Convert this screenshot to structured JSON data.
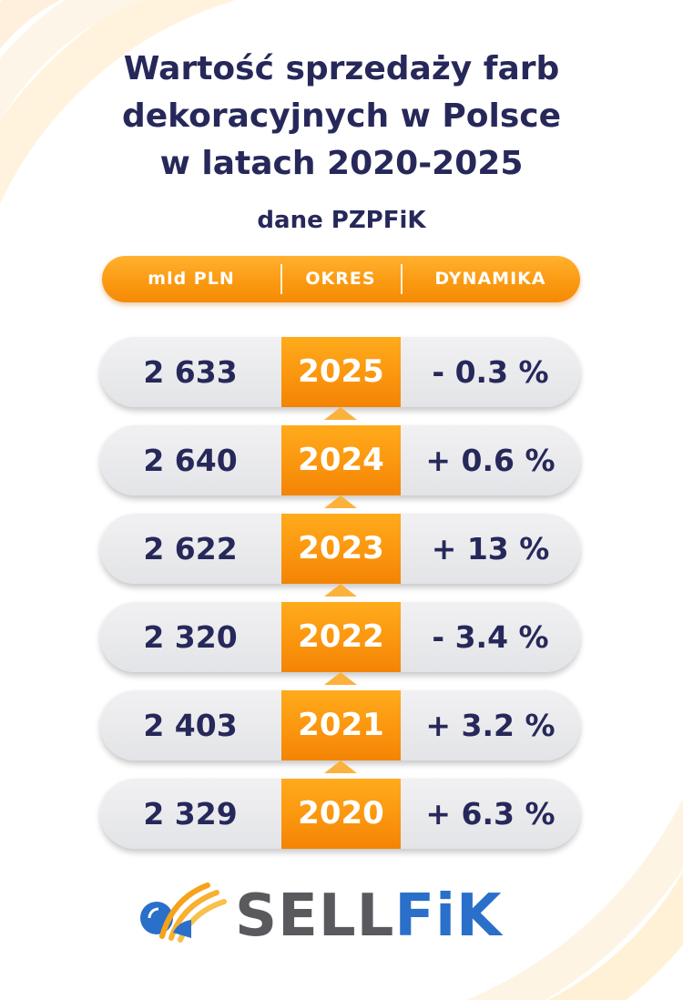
{
  "title_lines": [
    "Wartość sprzedaży farb",
    "dekoracyjnych w Polsce",
    "w latach 2020-2025"
  ],
  "subtitle": "dane PZPFiK",
  "colors": {
    "navy": "#27285a",
    "orange": "#fb960e",
    "row_bg": "#e6e7ea",
    "logo_grey": "#5a5a5e",
    "logo_blue": "#2a6fc9"
  },
  "header": {
    "value_label": "mld PLN",
    "period_label": "OKRES",
    "dynamics_label": "DYNAMIKA"
  },
  "rows": [
    {
      "value": "2 633",
      "year": "2025",
      "dynamics": "- 0.3 %"
    },
    {
      "value": "2 640",
      "year": "2024",
      "dynamics": "+ 0.6 %"
    },
    {
      "value": "2 622",
      "year": "2023",
      "dynamics": "+ 13 %"
    },
    {
      "value": "2 320",
      "year": "2022",
      "dynamics": "- 3.4 %"
    },
    {
      "value": "2 403",
      "year": "2021",
      "dynamics": "+ 3.2 %"
    },
    {
      "value": "2 329",
      "year": "2020",
      "dynamics": "+ 6.3 %"
    }
  ],
  "logo": {
    "part1": "SELL",
    "part2": "FiK",
    "icon": "orange-blue-arc-logo-icon"
  },
  "chart_data": {
    "type": "table",
    "title": "Wartość sprzedaży farb dekoracyjnych w Polsce w latach 2020-2025",
    "subtitle": "dane PZPFiK",
    "columns": [
      "mld PLN",
      "OKRES",
      "DYNAMIKA"
    ],
    "categories": [
      "2025",
      "2024",
      "2023",
      "2022",
      "2021",
      "2020"
    ],
    "series": [
      {
        "name": "mld PLN",
        "values": [
          2633,
          2640,
          2622,
          2320,
          2403,
          2329
        ]
      },
      {
        "name": "DYNAMIKA",
        "values": [
          -0.3,
          0.6,
          13,
          -3.4,
          3.2,
          6.3
        ]
      }
    ]
  }
}
